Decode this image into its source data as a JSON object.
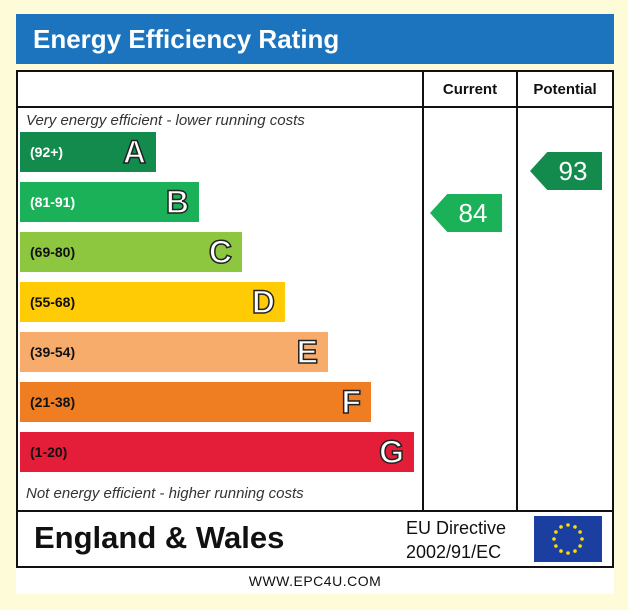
{
  "title": "Energy Efficiency Rating",
  "columns": {
    "current": "Current",
    "potential": "Potential"
  },
  "notes": {
    "top": "Very energy efficient - lower running costs",
    "bottom": "Not energy efficient - higher running costs"
  },
  "bands": [
    {
      "range": "(92+)",
      "letter": "A",
      "color": "#138b4c",
      "text_color": "#ffffff"
    },
    {
      "range": "(81-91)",
      "letter": "B",
      "color": "#1bb158",
      "text_color": "#ffffff"
    },
    {
      "range": "(69-80)",
      "letter": "C",
      "color": "#8dc63f",
      "text_color": "#111111"
    },
    {
      "range": "(55-68)",
      "letter": "D",
      "color": "#ffcb05",
      "text_color": "#111111"
    },
    {
      "range": "(39-54)",
      "letter": "E",
      "color": "#f7ac6b",
      "text_color": "#111111"
    },
    {
      "range": "(21-38)",
      "letter": "F",
      "color": "#ef7d22",
      "text_color": "#111111"
    },
    {
      "range": "(1-20)",
      "letter": "G",
      "color": "#e41d38",
      "text_color": "#111111"
    }
  ],
  "ratings": {
    "current": {
      "value": "84",
      "band": "B",
      "color": "#1bb158"
    },
    "potential": {
      "value": "93",
      "band": "A",
      "color": "#138b4c"
    }
  },
  "footer": {
    "region": "England & Wales",
    "directive_line1": "EU Directive",
    "directive_line2": "2002/91/EC"
  },
  "url": "WWW.EPC4U.COM"
}
